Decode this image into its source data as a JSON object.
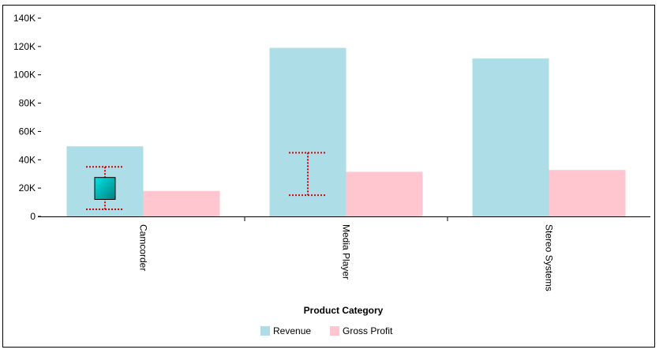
{
  "chart_data": {
    "type": "bar",
    "categories": [
      "Camcorder",
      "Media Player",
      "Stereo Systems"
    ],
    "series": [
      {
        "name": "Revenue",
        "values": [
          49500,
          119000,
          111500
        ],
        "color": "#ADDDE7"
      },
      {
        "name": "Gross Profit",
        "values": [
          18000,
          31500,
          32800
        ],
        "color": "#FFC6CF"
      }
    ],
    "xlabel": "Product Category",
    "ylabel": "",
    "ylim": [
      0,
      140000
    ],
    "yticks": [
      0,
      20000,
      40000,
      60000,
      80000,
      100000,
      120000,
      140000
    ],
    "ytick_labels": [
      "0",
      "20K",
      "40K",
      "60K",
      "80K",
      "100K",
      "120K",
      "140K"
    ],
    "legend_position": "bottom",
    "grid": false,
    "annotations": {
      "error_bars": [
        {
          "category": "Camcorder",
          "low": 5000,
          "high": 35000,
          "color": "#E00000"
        },
        {
          "category": "Media Player",
          "low": 15000,
          "high": 45000,
          "color": "#E00000"
        }
      ],
      "box": {
        "category": "Camcorder",
        "low": 12000,
        "high": 27500,
        "color_top": "#00E5E5",
        "color_bottom": "#008080"
      }
    }
  }
}
